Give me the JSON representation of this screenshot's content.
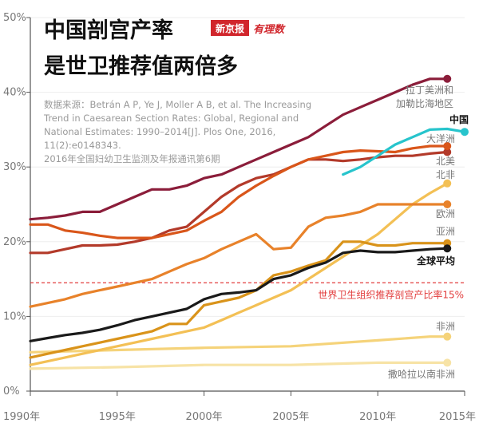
{
  "header": {
    "title_line1": "中国剖宫产率",
    "title_line2": "是世卫推荐值两倍多",
    "brand_name": "新京报",
    "brand_tag": "有理数"
  },
  "source_note": [
    "数据来源：Betrán A P, Ye J, Moller A B, et al. The Increasing",
    "Trend in Caesarean Section Rates: Global, Regional and",
    "National Estimates: 1990–2014[J]. Plos One, 2016,",
    "11(2):e0148343.",
    "2016年全国妇幼卫生监测及年报通讯第6期"
  ],
  "colors": {
    "axis": "#555555",
    "text_gray": "#777777",
    "title": "#111111",
    "brand_red": "#d1262c",
    "who_line": "#e23c3c",
    "china": "#27c4cc"
  },
  "chart_data": {
    "type": "line",
    "x_ticks": [
      "1990年",
      "1995年",
      "2000年",
      "2005年",
      "2010年",
      "2015年"
    ],
    "y_ticks": [
      "0%",
      "10%",
      "20%",
      "30%",
      "40%",
      "50%"
    ],
    "xlim": [
      1990,
      2015
    ],
    "ylim": [
      0,
      50
    ],
    "reference_line": {
      "label": "世界卫生组织推荐剖宫产比率15%",
      "value": 14.5,
      "color": "#e23c3c"
    },
    "series": [
      {
        "name": "拉丁美洲和加勒比海地区",
        "color": "#8b1d3a",
        "x": [
          1990,
          1991,
          1992,
          1993,
          1994,
          1995,
          1996,
          1997,
          1998,
          1999,
          2000,
          2001,
          2002,
          2003,
          2004,
          2005,
          2006,
          2007,
          2008,
          2009,
          2010,
          2011,
          2012,
          2013,
          2014
        ],
        "y": [
          23,
          23.2,
          23.5,
          24,
          24,
          25,
          26,
          27,
          27,
          27.5,
          28.5,
          29,
          30,
          31,
          32,
          33,
          34,
          35.5,
          37,
          38,
          39,
          40,
          41,
          41.8,
          41.8
        ]
      },
      {
        "name": "中国",
        "label": "中国",
        "color": "#27c4cc",
        "x": [
          2008,
          2009,
          2010,
          2011,
          2012,
          2013,
          2014,
          2015
        ],
        "y": [
          29,
          30,
          31.5,
          33,
          34,
          35,
          35.1,
          34.7
        ]
      },
      {
        "name": "大洋洲",
        "color": "#d9561a",
        "x": [
          1990,
          1991,
          1992,
          1993,
          1994,
          1995,
          1996,
          1997,
          1998,
          1999,
          2000,
          2001,
          2002,
          2003,
          2004,
          2005,
          2006,
          2007,
          2008,
          2009,
          2010,
          2011,
          2012,
          2013,
          2014
        ],
        "y": [
          22.3,
          22.3,
          21.5,
          21.2,
          20.8,
          20.5,
          20.5,
          20.5,
          21,
          21.5,
          22.8,
          24,
          26,
          27.5,
          28.8,
          30,
          31,
          31.5,
          32,
          32.2,
          32.1,
          32,
          32.5,
          32.8,
          32.8
        ]
      },
      {
        "name": "北美",
        "color": "#b33a2a",
        "x": [
          1990,
          1991,
          1992,
          1993,
          1994,
          1995,
          1996,
          1997,
          1998,
          1999,
          2000,
          2001,
          2002,
          2003,
          2004,
          2005,
          2006,
          2007,
          2008,
          2009,
          2010,
          2011,
          2012,
          2013,
          2014
        ],
        "y": [
          18.5,
          18.5,
          19,
          19.5,
          19.5,
          19.6,
          20,
          20.5,
          21.5,
          22,
          24,
          26,
          27.5,
          28.5,
          29,
          30,
          31,
          31,
          30.8,
          31,
          31.3,
          31.5,
          31.5,
          31.8,
          32
        ]
      },
      {
        "name": "北非",
        "color": "#f3c055",
        "x": [
          1990,
          1991,
          1992,
          1993,
          1994,
          1995,
          1996,
          1997,
          1998,
          1999,
          2000,
          2001,
          2002,
          2003,
          2004,
          2005,
          2006,
          2007,
          2008,
          2009,
          2010,
          2011,
          2012,
          2013,
          2014
        ],
        "y": [
          3.5,
          4,
          4.5,
          5,
          5.5,
          6,
          6.5,
          7,
          7.5,
          8,
          8.5,
          9.5,
          10.5,
          11.5,
          12.5,
          13.5,
          15,
          16.5,
          18,
          19.5,
          21,
          23,
          25,
          26.5,
          27.8
        ]
      },
      {
        "name": "欧洲",
        "color": "#e8822a",
        "x": [
          1990,
          1991,
          1992,
          1993,
          1994,
          1995,
          1996,
          1997,
          1998,
          1999,
          2000,
          2001,
          2002,
          2003,
          2004,
          2005,
          2006,
          2007,
          2008,
          2009,
          2010,
          2011,
          2012,
          2013,
          2014
        ],
        "y": [
          11.3,
          11.8,
          12.3,
          13,
          13.5,
          14,
          14.5,
          15,
          16,
          17,
          17.8,
          19,
          20,
          21,
          19,
          19.2,
          22,
          23.2,
          23.5,
          24,
          25,
          25,
          25,
          25,
          25
        ]
      },
      {
        "name": "亚洲",
        "color": "#d9931a",
        "x": [
          1990,
          1991,
          1992,
          1993,
          1994,
          1995,
          1996,
          1997,
          1998,
          1999,
          2000,
          2001,
          2002,
          2003,
          2004,
          2005,
          2006,
          2007,
          2008,
          2009,
          2010,
          2011,
          2012,
          2013,
          2014
        ],
        "y": [
          4.5,
          5,
          5.5,
          6,
          6.5,
          7,
          7.5,
          8,
          9,
          9,
          11.5,
          12,
          12.5,
          13.5,
          15.5,
          16,
          16.8,
          17.5,
          20,
          20,
          19.5,
          19.5,
          19.8,
          19.8,
          19.8
        ]
      },
      {
        "name": "全球平均",
        "label": "全球平均",
        "color": "#1a1a1a",
        "x": [
          1990,
          1991,
          1992,
          1993,
          1994,
          1995,
          1996,
          1997,
          1998,
          1999,
          2000,
          2001,
          2002,
          2003,
          2004,
          2005,
          2006,
          2007,
          2008,
          2009,
          2010,
          2011,
          2012,
          2013,
          2014
        ],
        "y": [
          6.7,
          7.1,
          7.5,
          7.8,
          8.2,
          8.8,
          9.5,
          10,
          10.5,
          11,
          12.3,
          13,
          13.2,
          13.5,
          15,
          15.5,
          16.5,
          17.2,
          18.5,
          18.8,
          18.6,
          18.6,
          18.8,
          19,
          19.1
        ]
      },
      {
        "name": "非洲",
        "color": "#f5d37a",
        "x": [
          1990,
          1995,
          2000,
          2005,
          2010,
          2013,
          2014
        ],
        "y": [
          5.2,
          5.5,
          5.8,
          6.0,
          6.8,
          7.3,
          7.3
        ]
      },
      {
        "name": "撒哈拉以南非洲",
        "color": "#f7e3a6",
        "x": [
          1990,
          1995,
          2000,
          2005,
          2010,
          2014
        ],
        "y": [
          3,
          3.2,
          3.5,
          3.5,
          3.8,
          3.8
        ]
      }
    ],
    "labels": [
      {
        "text": "拉丁美洲和",
        "series": "拉丁美洲和加勒比海地区",
        "line": 1
      },
      {
        "text": "加勒比海地区",
        "series": "拉丁美洲和加勒比海地区",
        "line": 2
      },
      {
        "text": "中国",
        "series": "中国"
      },
      {
        "text": "大洋洲",
        "series": "大洋洲"
      },
      {
        "text": "北美",
        "series": "北美"
      },
      {
        "text": "北非",
        "series": "北非"
      },
      {
        "text": "欧洲",
        "series": "欧洲"
      },
      {
        "text": "亚洲",
        "series": "亚洲"
      },
      {
        "text": "全球平均",
        "series": "全球平均"
      },
      {
        "text": "非洲",
        "series": "非洲"
      },
      {
        "text": "撒哈拉以南非洲",
        "series": "撒哈拉以南非洲"
      }
    ]
  }
}
